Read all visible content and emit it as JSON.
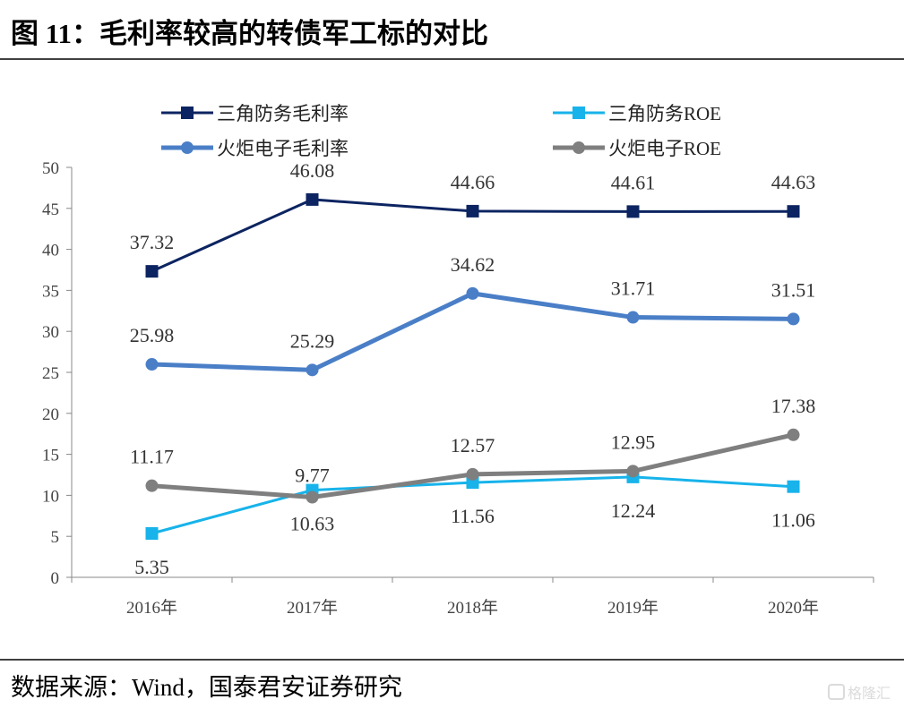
{
  "title": "图 11：毛利率较高的转债军工标的对比",
  "source": "数据来源：Wind，国泰君安证券研究",
  "watermark": "格隆汇",
  "chart_data": {
    "type": "line",
    "categories": [
      "2016年",
      "2017年",
      "2018年",
      "2019年",
      "2020年"
    ],
    "ylim": [
      0,
      50
    ],
    "yticks": [
      0,
      5,
      10,
      15,
      20,
      25,
      30,
      35,
      40,
      45,
      50
    ],
    "grid": false,
    "legend_placement": "top",
    "series": [
      {
        "name": "三角防务毛利率",
        "values": [
          37.32,
          46.08,
          44.66,
          44.61,
          44.63
        ],
        "color": "#0c2461",
        "marker": "square"
      },
      {
        "name": "三角防务ROE",
        "values": [
          5.35,
          10.63,
          11.56,
          12.24,
          11.06
        ],
        "color": "#17b3ea",
        "marker": "square"
      },
      {
        "name": "火炬电子毛利率",
        "values": [
          25.98,
          25.29,
          34.62,
          31.71,
          31.51
        ],
        "color": "#4a7fc7",
        "marker": "circle"
      },
      {
        "name": "火炬电子ROE",
        "values": [
          11.17,
          9.77,
          12.57,
          12.95,
          17.38
        ],
        "color": "#7f7f7f",
        "marker": "circle"
      }
    ]
  }
}
